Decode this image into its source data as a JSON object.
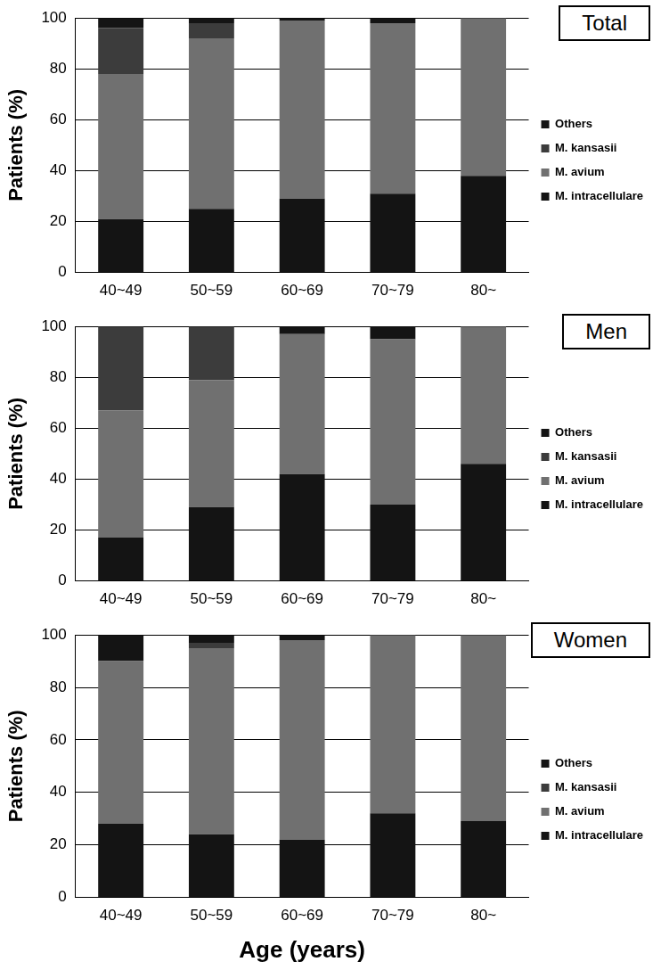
{
  "chart_data": [
    {
      "type": "bar",
      "title": "Total",
      "y_label": "Patients (%)",
      "categories": [
        "40~49",
        "50~59",
        "60~69",
        "70~79",
        "80~"
      ],
      "series": [
        {
          "name": "M. intracellulare",
          "color": "#141414",
          "values": [
            21,
            25,
            29,
            31,
            38
          ]
        },
        {
          "name": "M. avium",
          "color": "#707070",
          "values": [
            57,
            67,
            70,
            67,
            62
          ]
        },
        {
          "name": "M. kansasii",
          "color": "#3c3c3c",
          "values": [
            18,
            6,
            0,
            0,
            0
          ]
        },
        {
          "name": "Others",
          "color": "#141414",
          "values": [
            4,
            2,
            1,
            2,
            0
          ]
        }
      ],
      "ylim": [
        0,
        100
      ],
      "yticks": [
        0,
        20,
        40,
        60,
        80,
        100
      ],
      "grid": true,
      "stacked": true,
      "legend": "right"
    },
    {
      "type": "bar",
      "title": "Men",
      "y_label": "Patients (%)",
      "categories": [
        "40~49",
        "50~59",
        "60~69",
        "70~79",
        "80~"
      ],
      "series": [
        {
          "name": "M. intracellulare",
          "color": "#141414",
          "values": [
            17,
            29,
            42,
            30,
            46
          ]
        },
        {
          "name": "M. avium",
          "color": "#707070",
          "values": [
            50,
            50,
            55,
            65,
            54
          ]
        },
        {
          "name": "M. kansasii",
          "color": "#3c3c3c",
          "values": [
            33,
            21,
            0,
            0,
            0
          ]
        },
        {
          "name": "Others",
          "color": "#141414",
          "values": [
            0,
            0,
            3,
            5,
            0
          ]
        }
      ],
      "ylim": [
        0,
        100
      ],
      "yticks": [
        0,
        20,
        40,
        60,
        80,
        100
      ],
      "grid": true,
      "stacked": true,
      "legend": "right"
    },
    {
      "type": "bar",
      "title": "Women",
      "y_label": "Patients (%)",
      "x_label": "Age (years)",
      "categories": [
        "40~49",
        "50~59",
        "60~69",
        "70~79",
        "80~"
      ],
      "series": [
        {
          "name": "M. intracellulare",
          "color": "#141414",
          "values": [
            28,
            24,
            22,
            32,
            29
          ]
        },
        {
          "name": "M. avium",
          "color": "#707070",
          "values": [
            62,
            71,
            76,
            68,
            71
          ]
        },
        {
          "name": "M. kansasii",
          "color": "#3c3c3c",
          "values": [
            0,
            2,
            0,
            0,
            0
          ]
        },
        {
          "name": "Others",
          "color": "#141414",
          "values": [
            10,
            3,
            2,
            0,
            0
          ]
        }
      ],
      "ylim": [
        0,
        100
      ],
      "yticks": [
        0,
        20,
        40,
        60,
        80,
        100
      ],
      "grid": true,
      "stacked": true,
      "legend": "right"
    }
  ]
}
